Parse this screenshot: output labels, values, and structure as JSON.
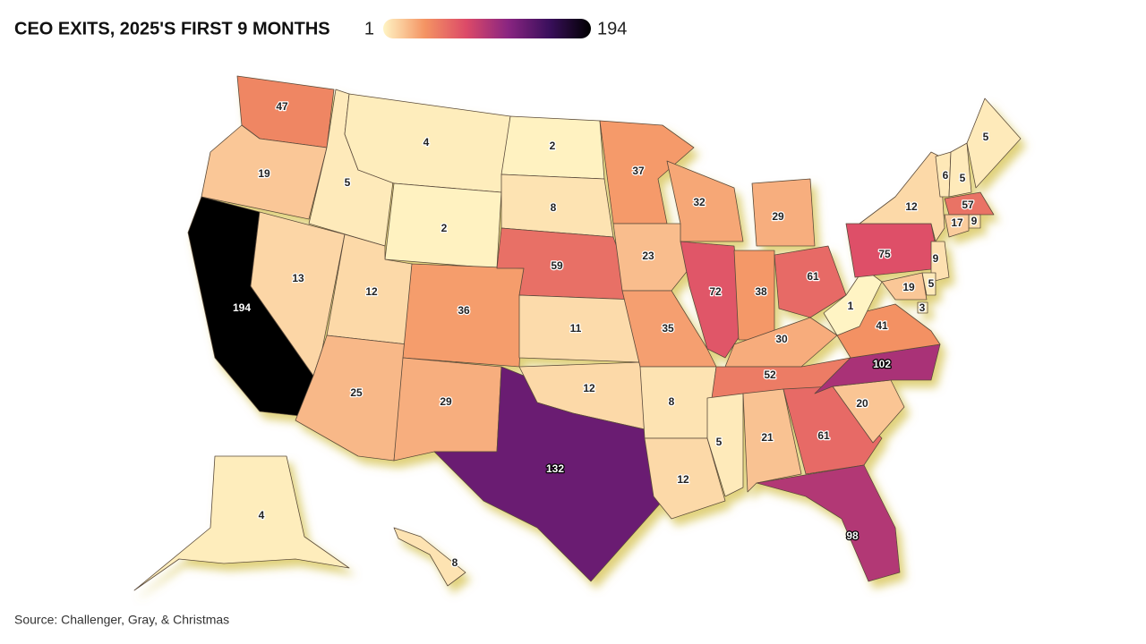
{
  "title": "CEO EXITS, 2025'S FIRST 9 MONTHS",
  "legend": {
    "min": 1,
    "max": 194,
    "colors": [
      "#fff4c4",
      "#f49463",
      "#dc4a68",
      "#8a2581",
      "#3a0f5c",
      "#000000"
    ]
  },
  "states": {
    "values": [
      47,
      19,
      194,
      5,
      13,
      4,
      2,
      12,
      25,
      36,
      29,
      2,
      8,
      59,
      11,
      12,
      132,
      37,
      23,
      35,
      8,
      12,
      32,
      72,
      29,
      38,
      61,
      30,
      52,
      5,
      21,
      61,
      98,
      20,
      102,
      41,
      1,
      75,
      12,
      6,
      5,
      5,
      57,
      9,
      17,
      9,
      5,
      19,
      3,
      4,
      8
    ]
  },
  "source": "Source: Challenger, Gray, & Christmas"
}
